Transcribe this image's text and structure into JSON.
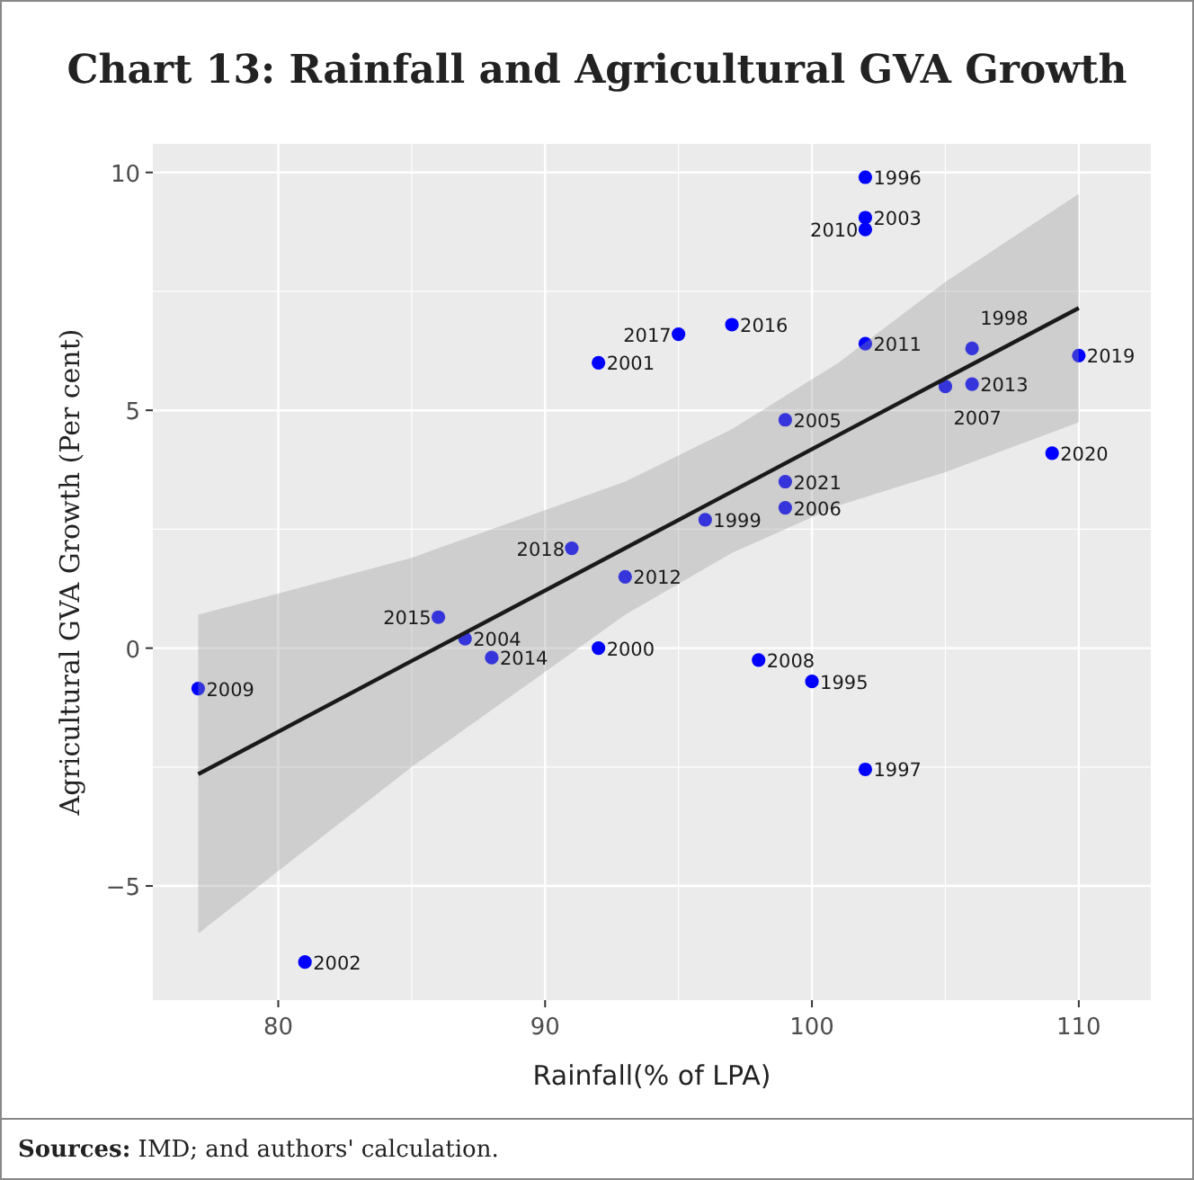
{
  "chart_data": {
    "type": "scatter",
    "title": "Chart 13: Rainfall and Agricultural GVA Growth",
    "xlabel": "Rainfall(% of LPA)",
    "ylabel": "Agricultural GVA Growth (Per cent)",
    "annotations": [
      "Sources: IMD; and authors' calculation.",
      {
        "text": "1996",
        "x": 102,
        "y": 9.9
      },
      {
        "text": "2003",
        "x": 102,
        "y": 9.05
      },
      {
        "text": "2010",
        "x": 102,
        "y": 8.8
      },
      {
        "text": "2011",
        "x": 102,
        "y": 6.4
      },
      {
        "text": "2017",
        "x": 95,
        "y": 6.6
      },
      {
        "text": "2016",
        "x": 97,
        "y": 6.8
      },
      {
        "text": "2001",
        "x": 92,
        "y": 6.0
      },
      {
        "text": "2013",
        "x": 106,
        "y": 5.55
      },
      {
        "text": "2007",
        "x": 105,
        "y": 5.5
      },
      {
        "text": "1998",
        "x": 106,
        "y": 6.3
      },
      {
        "text": "2019",
        "x": 110,
        "y": 6.15
      },
      {
        "text": "2005",
        "x": 99,
        "y": 4.8
      },
      {
        "text": "2020",
        "x": 109,
        "y": 4.1
      },
      {
        "text": "2021",
        "x": 99,
        "y": 3.5
      },
      {
        "text": "2006",
        "x": 99,
        "y": 2.95
      },
      {
        "text": "1999",
        "x": 96,
        "y": 2.7
      },
      {
        "text": "2018",
        "x": 91,
        "y": 2.1
      },
      {
        "text": "2012",
        "x": 93,
        "y": 1.5
      },
      {
        "text": "2015",
        "x": 86,
        "y": 0.65
      },
      {
        "text": "2004",
        "x": 87,
        "y": 0.2
      },
      {
        "text": "2014",
        "x": 88,
        "y": -0.2
      },
      {
        "text": "2000",
        "x": 92,
        "y": 0.0
      },
      {
        "text": "2009",
        "x": 77,
        "y": -0.85
      },
      {
        "text": "2008",
        "x": 98,
        "y": -0.25
      },
      {
        "text": "1995",
        "x": 100,
        "y": -0.7
      },
      {
        "text": "1997",
        "x": 102,
        "y": -2.55
      },
      {
        "text": "2002",
        "x": 81,
        "y": -6.6
      }
    ],
    "xlim": [
      75.3,
      112.7
    ],
    "ylim": [
      -7.4,
      10.6
    ],
    "xticks": [
      80,
      90,
      100,
      110
    ],
    "yticks": [
      -5,
      0,
      5,
      10
    ],
    "grid": true,
    "series": [
      {
        "color": "#0000ff",
        "marker": "circle",
        "x": [
          102,
          102,
          102,
          102,
          95,
          97,
          92,
          106,
          110,
          105,
          106,
          99,
          109,
          99,
          99,
          96,
          91,
          93,
          86,
          87,
          88,
          92,
          77,
          98,
          100,
          102,
          81
        ],
        "values": [
          9.9,
          9.05,
          8.8,
          6.4,
          6.6,
          6.8,
          6.0,
          6.3,
          6.15,
          5.5,
          5.55,
          4.8,
          4.1,
          3.5,
          2.95,
          2.7,
          2.1,
          1.5,
          0.65,
          0.2,
          -0.2,
          0.0,
          -0.85,
          -0.25,
          -0.7,
          -2.55,
          -6.6
        ]
      },
      {
        "type": "line",
        "color": "#1a1a1a",
        "x": [
          77,
          85,
          93,
          97,
          101,
          105,
          110
        ],
        "values": [
          -2.65,
          -0.27,
          2.1,
          3.29,
          4.48,
          5.67,
          7.15
        ],
        "lower": [
          -6.0,
          -2.5,
          0.7,
          2.0,
          3.0,
          3.7,
          4.75
        ],
        "upper": [
          0.7,
          1.9,
          3.5,
          4.6,
          6.0,
          7.7,
          9.55
        ]
      }
    ]
  }
}
